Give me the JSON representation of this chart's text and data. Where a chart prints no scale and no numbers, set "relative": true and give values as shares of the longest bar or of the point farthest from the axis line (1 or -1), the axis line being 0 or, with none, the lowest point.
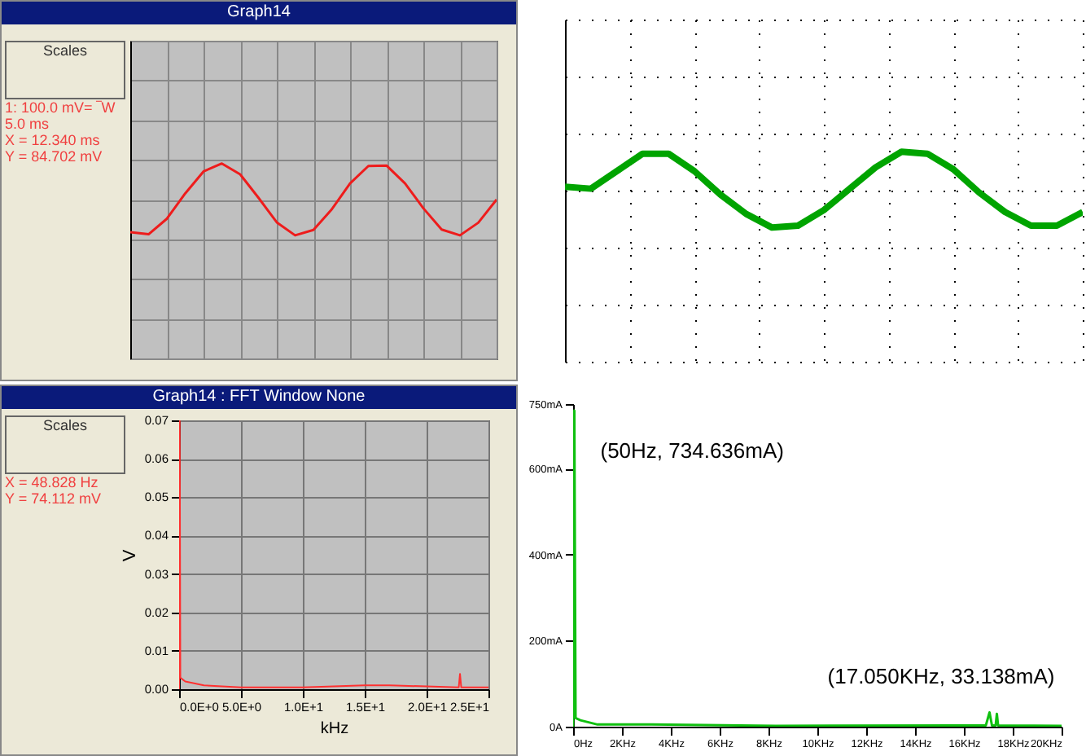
{
  "chart_data": [
    {
      "type": "line",
      "title": "Graph14",
      "annotations": [
        "Scales",
        "1: 100.0 mV= ‾W  5.0 ms",
        "X =  12.340 ms",
        "Y =  84.702 mV"
      ],
      "categories": [
        null,
        null,
        null,
        null,
        null,
        null,
        null,
        null,
        null,
        null,
        null,
        null,
        null,
        null,
        null,
        null,
        null,
        null,
        null,
        null,
        null
      ],
      "values": [
        -0.9,
        -0.96,
        -0.53,
        0.17,
        0.78,
        1.0,
        0.7,
        0.05,
        -0.63,
        -0.99,
        -0.84,
        -0.27,
        0.45,
        0.93,
        0.94,
        0.45,
        -0.24,
        -0.83,
        -0.99,
        -0.64,
        0.0
      ],
      "color": "#ee1c1c",
      "relative": true,
      "grid": true
    },
    {
      "type": "line",
      "categories": [
        null,
        null,
        null,
        null,
        null,
        null,
        null,
        null,
        null,
        null,
        null,
        null,
        null,
        null,
        null,
        null,
        null,
        null,
        null,
        null,
        null
      ],
      "values": [
        0.1,
        0.05,
        0.5,
        0.95,
        0.95,
        0.5,
        -0.1,
        -0.6,
        -0.95,
        -0.9,
        -0.5,
        0.05,
        0.6,
        1.0,
        0.95,
        0.55,
        -0.05,
        -0.55,
        -0.9,
        -0.9,
        -0.55
      ],
      "color": "#00a400",
      "relative": true,
      "grid": true
    },
    {
      "type": "line",
      "title": "Graph14 : FFT Window None",
      "annotations": [
        "Scales",
        "X =  48.828 Hz",
        "Y =  74.112 mV"
      ],
      "x": [
        0,
        0.049,
        0.1,
        0.5,
        2,
        5,
        10,
        15,
        17,
        22.6,
        22.7,
        22.8,
        25
      ],
      "values": [
        0,
        0.07,
        0.003,
        0.002,
        0.001,
        0.0005,
        0.0005,
        0.001,
        0.001,
        0.0005,
        0.004,
        0.0005,
        0.0005
      ],
      "color": "#ff3030",
      "xlim": [
        0,
        25
      ],
      "ylim": [
        0,
        0.07
      ],
      "xlabel": "kHz",
      "ylabel": "V",
      "grid": true,
      "xticks": [
        {
          "value": 0,
          "label": "0.0E+0"
        },
        {
          "value": 5,
          "label": "5.0E+0"
        },
        {
          "value": 10,
          "label": "1.0E+1"
        },
        {
          "value": 15,
          "label": "1.5E+1"
        },
        {
          "value": 20,
          "label": "2.0E+1"
        },
        {
          "value": 25,
          "label": "2.5E+1"
        }
      ],
      "yticks": [
        {
          "value": 0,
          "label": "0.00"
        },
        {
          "value": 0.01,
          "label": "0.01"
        },
        {
          "value": 0.02,
          "label": "0.02"
        },
        {
          "value": 0.03,
          "label": "0.03"
        },
        {
          "value": 0.04,
          "label": "0.04"
        },
        {
          "value": 0.05,
          "label": "0.05"
        },
        {
          "value": 0.06,
          "label": "0.06"
        },
        {
          "value": 0.07,
          "label": "0.07"
        }
      ]
    },
    {
      "type": "line",
      "x": [
        0,
        0.05,
        0.1,
        0.3,
        1,
        3.2,
        8.3,
        15.8,
        16.9,
        17.05,
        17.15,
        17.3,
        17.35,
        17.4,
        20
      ],
      "values": [
        0,
        734.636,
        20,
        15,
        5,
        5,
        2,
        3,
        3,
        33.138,
        3,
        3,
        30,
        3,
        2
      ],
      "color": "#10c010",
      "xlim": [
        0,
        20
      ],
      "ylim": [
        0,
        750
      ],
      "xticks": [
        {
          "value": 0,
          "label": "0Hz"
        },
        {
          "value": 2,
          "label": "2KHz"
        },
        {
          "value": 4,
          "label": "4KHz"
        },
        {
          "value": 6,
          "label": "6KHz"
        },
        {
          "value": 8,
          "label": "8KHz"
        },
        {
          "value": 10,
          "label": "10KHz"
        },
        {
          "value": 12,
          "label": "12KHz"
        },
        {
          "value": 14,
          "label": "14KHz"
        },
        {
          "value": 16,
          "label": "16KHz"
        },
        {
          "value": 18,
          "label": "18KHz"
        },
        {
          "value": 20,
          "label": "20KHz"
        }
      ],
      "yticks": [
        {
          "value": 0,
          "label": "0A"
        },
        {
          "value": 200,
          "label": "200mA"
        },
        {
          "value": 400,
          "label": "400mA"
        },
        {
          "value": 600,
          "label": "600mA"
        },
        {
          "value": 750,
          "label": "750mA"
        }
      ],
      "annotations": [
        {
          "text": "(50Hz,   734.636mA)",
          "x": 0.05,
          "y": 734.636
        },
        {
          "text": "(17.050KHz,   33.138mA)",
          "x": 17.05,
          "y": 33.138
        }
      ]
    }
  ]
}
